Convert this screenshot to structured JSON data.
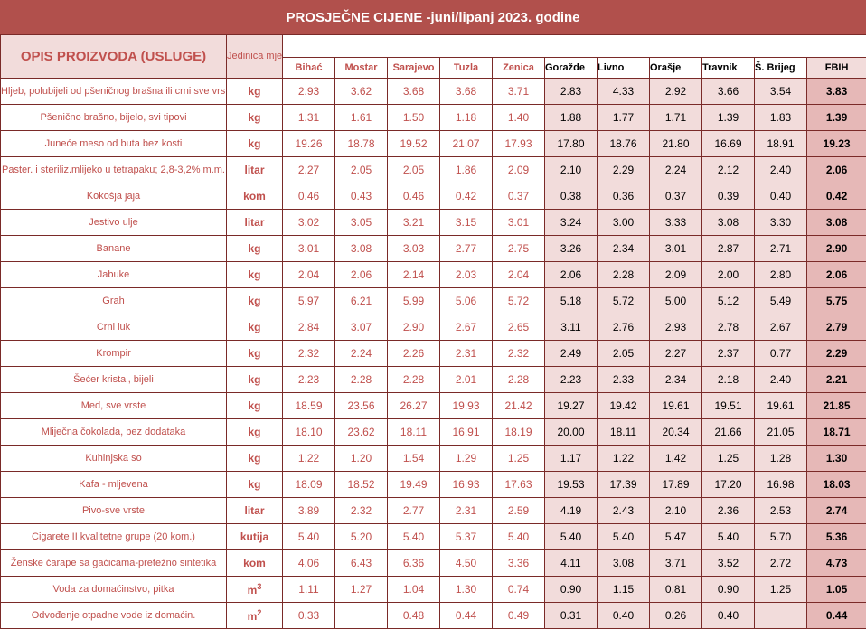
{
  "title": "PROSJEČNE CIJENE -juni/lipanj 2023. godine",
  "header": {
    "description": "OPIS PROIZVODA (USLUGE)",
    "unit": "Jedinica mjere",
    "cities": [
      "Bihać",
      "Mostar",
      "Sarajevo",
      "Tuzla",
      "Zenica",
      "Goražde",
      "Livno",
      "Orašje",
      "Travnik",
      "Š. Brijeg"
    ],
    "total": "FBIH"
  },
  "rows": [
    {
      "name": "Hljeb, polubijeli od pšeničnog brašna ili crni sve vrste",
      "unit": "kg",
      "values": [
        "2.93",
        "3.62",
        "3.68",
        "3.68",
        "3.71",
        "2.83",
        "4.33",
        "2.92",
        "3.66",
        "3.54"
      ],
      "fbih": "3.83"
    },
    {
      "name": "Pšenično brašno, bijelo, svi tipovi",
      "unit": "kg",
      "values": [
        "1.31",
        "1.61",
        "1.50",
        "1.18",
        "1.40",
        "1.88",
        "1.77",
        "1.71",
        "1.39",
        "1.83"
      ],
      "fbih": "1.39"
    },
    {
      "name": "Juneće meso od buta bez kosti",
      "unit": "kg",
      "values": [
        "19.26",
        "18.78",
        "19.52",
        "21.07",
        "17.93",
        "17.80",
        "18.76",
        "21.80",
        "16.69",
        "18.91"
      ],
      "fbih": "19.23"
    },
    {
      "name": "Paster. i steriliz.mlijeko u tetrapaku; 2,8-3,2% m.m.",
      "unit": "litar",
      "values": [
        "2.27",
        "2.05",
        "2.05",
        "1.86",
        "2.09",
        "2.10",
        "2.29",
        "2.24",
        "2.12",
        "2.40"
      ],
      "fbih": "2.06"
    },
    {
      "name": "Kokošja jaja",
      "unit": "kom",
      "values": [
        "0.46",
        "0.43",
        "0.46",
        "0.42",
        "0.37",
        "0.38",
        "0.36",
        "0.37",
        "0.39",
        "0.40"
      ],
      "fbih": "0.42"
    },
    {
      "name": "Jestivo ulje",
      "unit": "litar",
      "values": [
        "3.02",
        "3.05",
        "3.21",
        "3.15",
        "3.01",
        "3.24",
        "3.00",
        "3.33",
        "3.08",
        "3.30"
      ],
      "fbih": "3.08"
    },
    {
      "name": "Banane",
      "unit": "kg",
      "values": [
        "3.01",
        "3.08",
        "3.03",
        "2.77",
        "2.75",
        "3.26",
        "2.34",
        "3.01",
        "2.87",
        "2.71"
      ],
      "fbih": "2.90"
    },
    {
      "name": "Jabuke",
      "unit": "kg",
      "values": [
        "2.04",
        "2.06",
        "2.14",
        "2.03",
        "2.04",
        "2.06",
        "2.28",
        "2.09",
        "2.00",
        "2.80"
      ],
      "fbih": "2.06"
    },
    {
      "name": "Grah",
      "unit": "kg",
      "values": [
        "5.97",
        "6.21",
        "5.99",
        "5.06",
        "5.72",
        "5.18",
        "5.72",
        "5.00",
        "5.12",
        "5.49"
      ],
      "fbih": "5.75"
    },
    {
      "name": "Crni luk",
      "unit": "kg",
      "values": [
        "2.84",
        "3.07",
        "2.90",
        "2.67",
        "2.65",
        "3.11",
        "2.76",
        "2.93",
        "2.78",
        "2.67"
      ],
      "fbih": "2.79"
    },
    {
      "name": "Krompir",
      "unit": "kg",
      "values": [
        "2.32",
        "2.24",
        "2.26",
        "2.31",
        "2.32",
        "2.49",
        "2.05",
        "2.27",
        "2.37",
        "0.77"
      ],
      "fbih": "2.29"
    },
    {
      "name": "Šećer kristal, bijeli",
      "unit": "kg",
      "values": [
        "2.23",
        "2.28",
        "2.28",
        "2.01",
        "2.28",
        "2.23",
        "2.33",
        "2.34",
        "2.18",
        "2.40"
      ],
      "fbih": "2.21"
    },
    {
      "name": "Med, sve vrste",
      "unit": "kg",
      "values": [
        "18.59",
        "23.56",
        "26.27",
        "19.93",
        "21.42",
        "19.27",
        "19.42",
        "19.61",
        "19.51",
        "19.61"
      ],
      "fbih": "21.85"
    },
    {
      "name": "Mliječna čokolada, bez dodataka",
      "unit": "kg",
      "values": [
        "18.10",
        "23.62",
        "18.11",
        "16.91",
        "18.19",
        "20.00",
        "18.11",
        "20.34",
        "21.66",
        "21.05"
      ],
      "fbih": "18.71"
    },
    {
      "name": "Kuhinjska so",
      "unit": "kg",
      "values": [
        "1.22",
        "1.20",
        "1.54",
        "1.29",
        "1.25",
        "1.17",
        "1.22",
        "1.42",
        "1.25",
        "1.28"
      ],
      "fbih": "1.30"
    },
    {
      "name": "Kafa - mljevena",
      "unit": "kg",
      "values": [
        "18.09",
        "18.52",
        "19.49",
        "16.93",
        "17.63",
        "19.53",
        "17.39",
        "17.89",
        "17.20",
        "16.98"
      ],
      "fbih": "18.03"
    },
    {
      "name": "Pivo-sve vrste",
      "unit": "litar",
      "values": [
        "3.89",
        "2.32",
        "2.77",
        "2.31",
        "2.59",
        "4.19",
        "2.43",
        "2.10",
        "2.36",
        "2.53"
      ],
      "fbih": "2.74"
    },
    {
      "name": "Cigarete II kvalitetne grupe (20 kom.)",
      "unit": "kutija",
      "values": [
        "5.40",
        "5.20",
        "5.40",
        "5.37",
        "5.40",
        "5.40",
        "5.40",
        "5.47",
        "5.40",
        "5.70"
      ],
      "fbih": "5.36"
    },
    {
      "name": "Ženske čarape sa gaćicama-pretežno sintetika",
      "unit": "kom",
      "values": [
        "4.06",
        "6.43",
        "6.36",
        "4.50",
        "3.36",
        "4.11",
        "3.08",
        "3.71",
        "3.52",
        "2.72"
      ],
      "fbih": "4.73"
    },
    {
      "name": "Voda za domaćinstvo, pitka",
      "unit": "m",
      "unit_sup": "3",
      "values": [
        "1.11",
        "1.27",
        "1.04",
        "1.30",
        "0.74",
        "0.90",
        "1.15",
        "0.81",
        "0.90",
        "1.25"
      ],
      "fbih": "1.05"
    },
    {
      "name": "Odvođenje otpadne vode iz domaćin.",
      "unit": "m",
      "unit_sup": "2",
      "values": [
        "0.33",
        "",
        "0.48",
        "0.44",
        "0.49",
        "0.31",
        "0.40",
        "0.26",
        "0.40",
        ""
      ],
      "fbih": "0.44"
    }
  ],
  "colors": {
    "title_bg": "#b1504c",
    "header_bg": "#f2dcdb",
    "fbih_bg": "#e6b8b7",
    "text_red": "#c0504d",
    "border": "#7a2a28"
  }
}
